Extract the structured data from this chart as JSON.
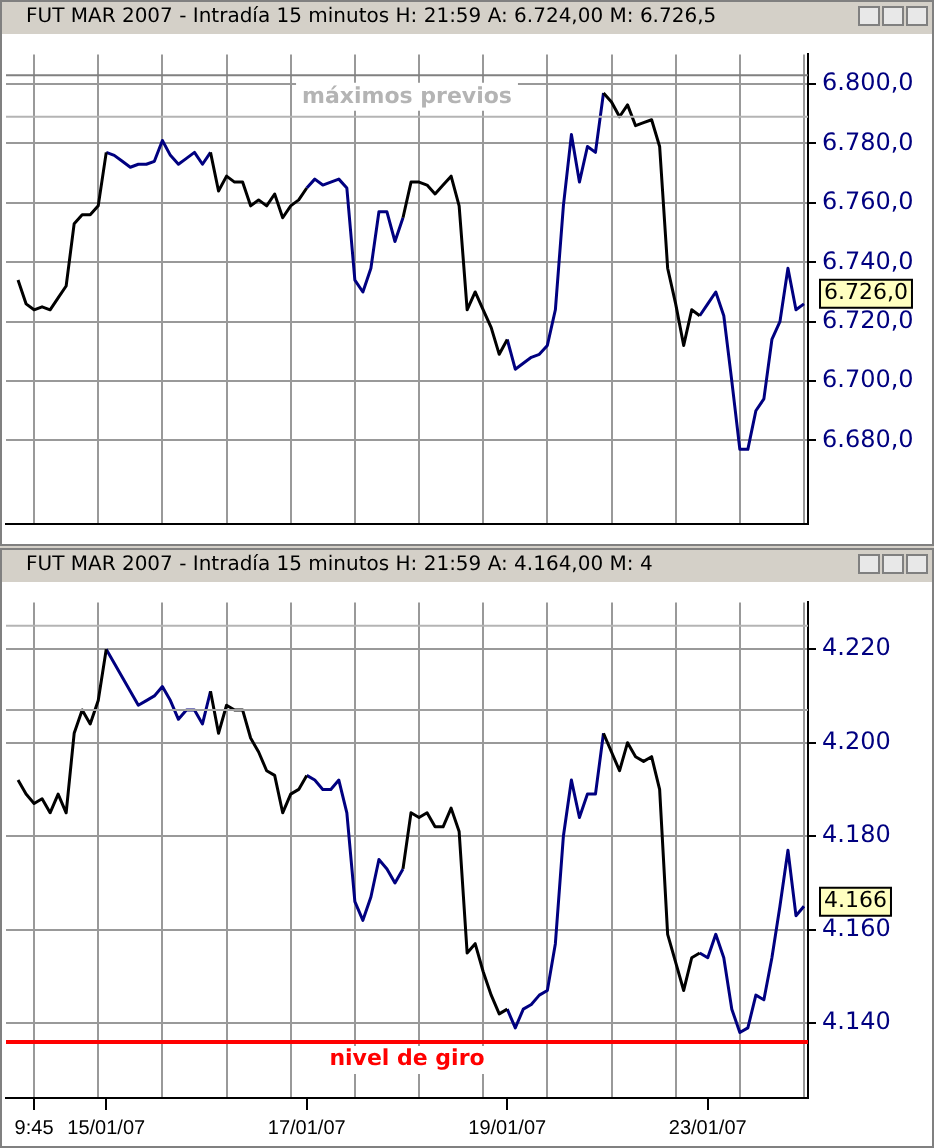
{
  "chart_data": [
    {
      "type": "line",
      "title": "FUT MAR 2007 - Intradía 15 minutos H: 21:59 A: 6.724,00 M: 6.726,5",
      "categories": [
        null,
        null,
        null,
        null,
        null,
        null,
        null,
        null,
        null,
        null,
        null,
        null,
        null,
        null,
        null,
        null,
        null,
        null,
        null,
        null,
        null,
        null,
        null,
        null,
        null,
        null,
        null,
        null,
        null,
        null,
        null,
        null,
        null,
        null,
        null,
        null,
        null,
        null,
        null,
        null,
        null,
        null,
        null,
        null,
        null,
        null,
        null,
        null,
        null,
        null,
        null,
        null,
        null,
        null,
        null,
        null,
        null,
        null,
        null,
        null,
        null,
        null,
        null,
        null,
        null,
        null,
        null,
        null,
        null,
        null,
        null,
        null,
        null,
        null,
        null,
        null,
        null,
        null,
        null,
        null,
        null,
        null,
        null,
        null,
        null,
        null,
        null,
        null,
        null,
        null,
        null,
        null,
        null,
        null,
        null,
        null,
        null,
        null,
        null,
        null
      ],
      "series": [
        {
          "color": "#000000",
          "values": [
            null,
            6734,
            6726,
            6724,
            6725,
            6724,
            6728,
            6732,
            6753,
            6756,
            6756,
            6759,
            6777,
            null,
            null,
            null,
            null,
            null,
            null,
            null,
            null,
            null,
            null,
            null,
            null,
            6777,
            6764,
            6769,
            6767,
            6767,
            6759,
            6761,
            6759,
            6763,
            6755,
            6759,
            6761,
            6765,
            null,
            null,
            null,
            null,
            null,
            null,
            null,
            null,
            null,
            null,
            null,
            6755,
            6767,
            6767,
            6766,
            6763,
            6766,
            6769,
            6759,
            6724,
            6730,
            6724,
            6718,
            6709,
            6714,
            null,
            null,
            null,
            null,
            null,
            null,
            null,
            null,
            null,
            null,
            null,
            6797,
            6794,
            6789,
            6793,
            6786,
            6787,
            6788,
            6779,
            6738,
            6726,
            6712,
            6724,
            6722,
            null,
            null,
            null,
            null,
            null,
            null,
            null,
            null,
            null,
            null,
            null,
            null,
            null
          ]
        },
        {
          "color": "#000080",
          "values": [
            null,
            null,
            null,
            null,
            null,
            null,
            null,
            null,
            null,
            null,
            null,
            null,
            6777,
            6776,
            6774,
            6772,
            6773,
            6773,
            6774,
            6781,
            6776,
            6773,
            6775,
            6777,
            6773,
            6777,
            null,
            null,
            null,
            null,
            null,
            null,
            null,
            null,
            null,
            null,
            null,
            6765,
            6768,
            6766,
            6767,
            6768,
            6765,
            6734,
            6730,
            6738,
            6757,
            6757,
            6747,
            6755,
            null,
            null,
            null,
            null,
            null,
            null,
            null,
            null,
            null,
            null,
            null,
            null,
            6714,
            6704,
            6706,
            6708,
            6709,
            6712,
            6724,
            6759,
            6783,
            6767,
            6779,
            6777,
            6797,
            null,
            null,
            null,
            null,
            null,
            null,
            null,
            null,
            null,
            null,
            null,
            6722,
            6726,
            6730,
            6722,
            6700,
            6677,
            6677,
            6690,
            6694,
            6714,
            6720,
            6738,
            6724,
            6726
          ]
        }
      ],
      "ylim": [
        6652,
        6810
      ],
      "yticks": [
        {
          "value": 6680,
          "label": "6.680,0"
        },
        {
          "value": 6700,
          "label": "6.700,0"
        },
        {
          "value": 6720,
          "label": "6.720,0"
        },
        {
          "value": 6740,
          "label": "6.740,0"
        },
        {
          "value": 6760,
          "label": "6.760,0"
        },
        {
          "value": 6780,
          "label": "6.780,0"
        },
        {
          "value": 6800,
          "label": "6.800,0"
        }
      ],
      "grid": true,
      "tick_labels": "y",
      "ref_lines": [
        {
          "axis": "y",
          "value": 6789,
          "label": "máximos previos",
          "color": "#b4b4b4"
        },
        {
          "axis": "y",
          "value": 6803,
          "color": "#808080"
        }
      ],
      "annotations": [
        "6.726,0"
      ]
    },
    {
      "type": "line",
      "title": "FUT MAR 2007 - Intradía 15 minutos H: 21:59 A: 4.164,00 M: 4",
      "categories": [
        null,
        null,
        null,
        "9:45",
        null,
        null,
        null,
        null,
        null,
        null,
        null,
        null,
        "15/01/07",
        null,
        null,
        null,
        null,
        null,
        null,
        null,
        null,
        null,
        null,
        null,
        null,
        null,
        null,
        null,
        null,
        null,
        null,
        null,
        null,
        null,
        null,
        null,
        null,
        "17/01/07",
        null,
        null,
        null,
        null,
        null,
        null,
        null,
        null,
        null,
        null,
        null,
        null,
        null,
        null,
        null,
        null,
        null,
        null,
        null,
        null,
        null,
        null,
        null,
        null,
        "19/01/07",
        null,
        null,
        null,
        null,
        null,
        null,
        null,
        null,
        null,
        null,
        null,
        null,
        null,
        null,
        null,
        null,
        null,
        null,
        null,
        null,
        null,
        null,
        null,
        null,
        "23/01/07",
        null,
        null,
        null,
        null,
        null,
        null,
        null,
        null,
        null,
        null,
        null,
        null
      ],
      "series": [
        {
          "color": "#000000",
          "values": [
            null,
            4192,
            4189,
            4187,
            4188,
            4185,
            4189,
            4185,
            4202,
            4207,
            4204,
            4209,
            4220,
            null,
            null,
            null,
            null,
            null,
            null,
            null,
            null,
            null,
            null,
            null,
            null,
            4211,
            4202,
            4208,
            4207,
            4207,
            4201,
            4198,
            4194,
            4193,
            4185,
            4189,
            4190,
            4193,
            null,
            null,
            null,
            null,
            null,
            null,
            null,
            null,
            null,
            null,
            null,
            4173,
            4185,
            4184,
            4185,
            4182,
            4182,
            4186,
            4181,
            4155,
            4157,
            4151,
            4146,
            4142,
            4143,
            null,
            null,
            null,
            null,
            null,
            null,
            null,
            null,
            null,
            null,
            null,
            4202,
            4198,
            4194,
            4200,
            4197,
            4196,
            4197,
            4190,
            4159,
            4153,
            4147,
            4154,
            4155,
            null,
            null,
            null,
            null,
            null,
            null,
            null,
            null,
            null,
            null,
            null,
            null,
            null
          ]
        },
        {
          "color": "#000080",
          "values": [
            null,
            null,
            null,
            null,
            null,
            null,
            null,
            null,
            null,
            null,
            null,
            null,
            4220,
            4217,
            4214,
            4211,
            4208,
            4209,
            4210,
            4212,
            4209,
            4205,
            4207,
            4207,
            4204,
            4211,
            null,
            null,
            null,
            null,
            null,
            null,
            null,
            null,
            null,
            null,
            null,
            4193,
            4192,
            4190,
            4190,
            4192,
            4185,
            4166,
            4162,
            4167,
            4175,
            4173,
            4170,
            4173,
            null,
            null,
            null,
            null,
            null,
            null,
            null,
            null,
            null,
            null,
            null,
            null,
            4143,
            4139,
            4143,
            4144,
            4146,
            4147,
            4157,
            4180,
            4192,
            4184,
            4189,
            4189,
            4202,
            null,
            null,
            null,
            null,
            null,
            null,
            null,
            null,
            null,
            null,
            null,
            4155,
            4154,
            4159,
            4154,
            4143,
            4138,
            4139,
            4146,
            4145,
            4154,
            4165,
            4177,
            4163,
            4165
          ]
        }
      ],
      "ylim": [
        4124,
        4230
      ],
      "yticks": [
        {
          "value": 4140,
          "label": "4.140"
        },
        {
          "value": 4160,
          "label": "4.160"
        },
        {
          "value": 4180,
          "label": "4.180"
        },
        {
          "value": 4200,
          "label": "4.200"
        },
        {
          "value": 4220,
          "label": "4.220"
        }
      ],
      "grid": true,
      "ref_lines": [
        {
          "axis": "y",
          "value": 4225,
          "color": "#b4b4b4"
        },
        {
          "axis": "y",
          "value": 4207,
          "color": "#a0a0a0"
        },
        {
          "axis": "y",
          "value": 4136,
          "label": "nivel de giro",
          "color": "#ff0000"
        }
      ],
      "annotations": [
        "4.166"
      ]
    }
  ]
}
